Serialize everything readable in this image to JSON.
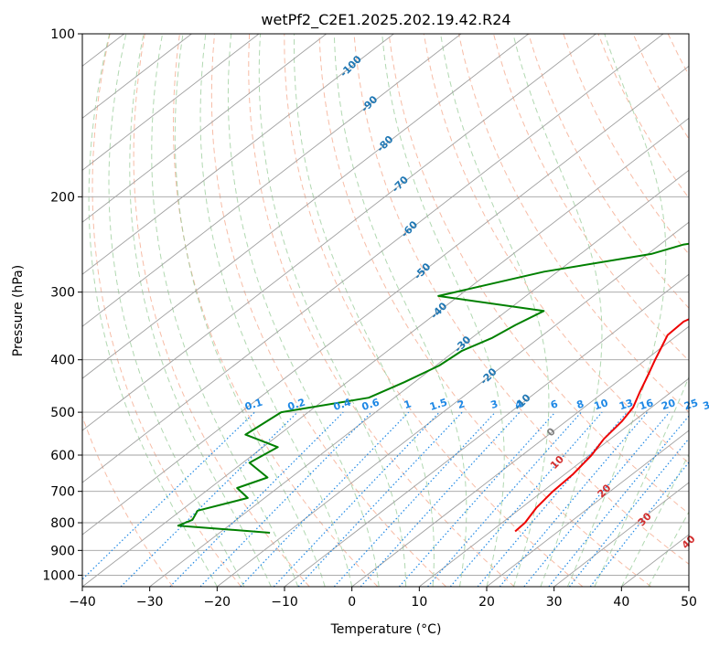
{
  "chart_data": {
    "type": "line",
    "title": "wetPf2_C2E1.2025.202.19.42.R24",
    "xlabel": "Temperature (°C)",
    "ylabel": "Pressure (hPa)",
    "xlim": [
      -40,
      50
    ],
    "ylim": [
      1050,
      100
    ],
    "yscale": "log",
    "x_ticks": [
      -40,
      -30,
      -20,
      -10,
      0,
      10,
      20,
      30,
      40,
      50
    ],
    "y_ticks": [
      100,
      200,
      300,
      400,
      500,
      600,
      700,
      800,
      900,
      1000
    ],
    "grid": true,
    "skew_deg_per_log_unit": 104,
    "colors": {
      "temperature": "#ee0000",
      "dewpoint": "#008000",
      "isotherm": "#a0a0a0",
      "dry_adiabat": "#f4a080",
      "moist_adiabat": "#90c890",
      "mixing_ratio": "#1e88e5",
      "isotherm_label": "#1f77b4",
      "moist_label": "#d32f2f",
      "zero_label": "#808080"
    },
    "series": [
      {
        "key": "temperature",
        "points": [
          [
            100,
            19.8
          ],
          [
            110,
            16.5
          ],
          [
            130,
            14.7
          ],
          [
            150,
            12.2
          ],
          [
            170,
            10.3
          ],
          [
            190,
            8.3
          ],
          [
            210,
            5.8
          ],
          [
            230,
            5.2
          ],
          [
            250,
            4.2
          ],
          [
            280,
            3.5
          ],
          [
            300,
            2.5
          ],
          [
            320,
            0.2
          ],
          [
            340,
            -1.7
          ],
          [
            360,
            -1.5
          ],
          [
            380,
            0.0
          ],
          [
            400,
            1.4
          ],
          [
            430,
            3.5
          ],
          [
            460,
            5.4
          ],
          [
            490,
            7.3
          ],
          [
            520,
            8.3
          ],
          [
            560,
            9.0
          ],
          [
            600,
            10.3
          ],
          [
            650,
            11.2
          ],
          [
            700,
            11.5
          ],
          [
            750,
            12.2
          ],
          [
            800,
            13.4
          ],
          [
            830,
            13.6
          ]
        ]
      },
      {
        "key": "dewpoint",
        "points": [
          [
            100,
            19.1
          ],
          [
            110,
            16.2
          ],
          [
            125,
            8.8
          ],
          [
            145,
            2.8
          ],
          [
            160,
            0.8
          ],
          [
            175,
            0.5
          ],
          [
            190,
            0.5
          ],
          [
            210,
            0.5
          ],
          [
            230,
            -4.8
          ],
          [
            245,
            -16.5
          ],
          [
            255,
            -19.5
          ],
          [
            275,
            -32.0
          ],
          [
            305,
            -43.0
          ],
          [
            325,
            -24.5
          ],
          [
            345,
            -26.0
          ],
          [
            365,
            -27.0
          ],
          [
            385,
            -29.0
          ],
          [
            410,
            -29.5
          ],
          [
            440,
            -31.5
          ],
          [
            470,
            -33.8
          ],
          [
            500,
            -44.0
          ],
          [
            550,
            -45.0
          ],
          [
            580,
            -37.8
          ],
          [
            620,
            -39.0
          ],
          [
            660,
            -33.5
          ],
          [
            690,
            -36.0
          ],
          [
            720,
            -32.5
          ],
          [
            760,
            -37.5
          ],
          [
            790,
            -36.5
          ],
          [
            810,
            -37.5
          ],
          [
            835,
            -22.5
          ]
        ]
      }
    ],
    "isotherm_labels": [
      {
        "text": "-100",
        "t": -100,
        "p": 115
      },
      {
        "text": "-90",
        "t": -90,
        "p": 135
      },
      {
        "text": "-80",
        "t": -80,
        "p": 160
      },
      {
        "text": "-70",
        "t": -70,
        "p": 190
      },
      {
        "text": "-60",
        "t": -60,
        "p": 230
      },
      {
        "text": "-50",
        "t": -50,
        "p": 275
      },
      {
        "text": "-40",
        "t": -40,
        "p": 325
      },
      {
        "text": "-30",
        "t": -30,
        "p": 375
      },
      {
        "text": "-20",
        "t": -20,
        "p": 430
      },
      {
        "text": "-10",
        "t": -10,
        "p": 480
      },
      {
        "text": "0",
        "t": 0,
        "p": 545
      }
    ],
    "mixing_ratio_labels": [
      "0.1",
      "0.2",
      "0.4",
      "0.6",
      "1",
      "1.5",
      "2",
      "3",
      "4",
      "6",
      "8",
      "10",
      "13",
      "16",
      "20",
      "25",
      "30",
      "36"
    ],
    "moist_adiabat_labels": [
      "10",
      "20",
      "30",
      "40"
    ]
  }
}
